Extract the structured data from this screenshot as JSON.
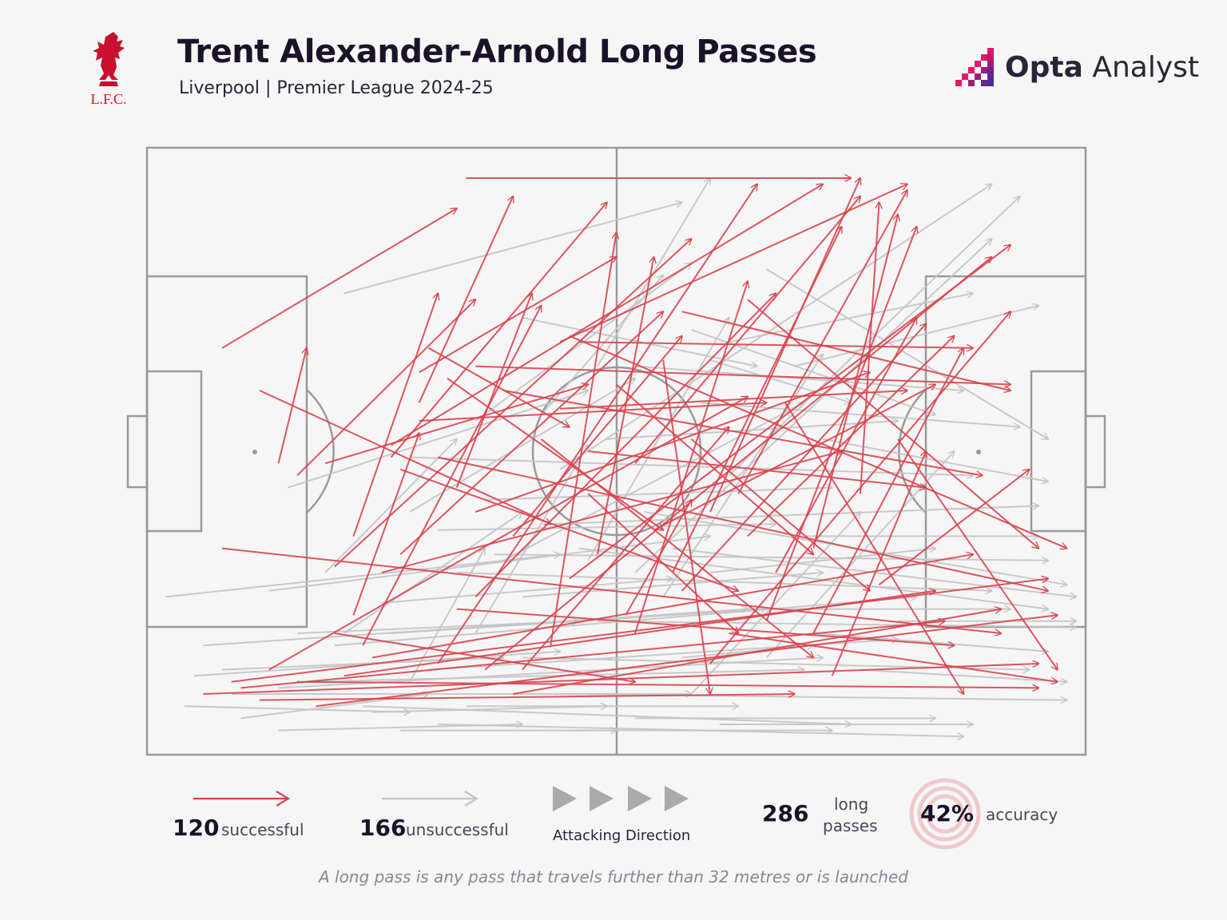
{
  "header": {
    "title": "Trent Alexander-Arnold Long Passes",
    "subtitle": "Liverpool | Premier League 2024-25",
    "club_crest_text": "L.F.C.",
    "brand_bold": "Opta",
    "brand_light": " Analyst"
  },
  "colors": {
    "successful": "#d9434f",
    "unsuccessful": "#c4c4c4",
    "pitch_lines": "#9a9a9a",
    "background": "#f6f6f6",
    "brand": "#b0185e"
  },
  "legend": {
    "successful_count": "120",
    "successful_label": "successful",
    "unsuccessful_count": "166",
    "unsuccessful_label": "unsuccessful",
    "direction_label": "Attacking Direction",
    "total_count": "286",
    "total_label_line1": "long",
    "total_label_line2": "passes",
    "accuracy_value": "42%",
    "accuracy_label": "accuracy"
  },
  "footnote": "A long pass is any pass that travels further than 32 metres or is launched",
  "chart_data": {
    "type": "pass-map",
    "pitch_units": "x 0-100 along length (attacking left to right), y 0-100 across width (0 = top touchline)",
    "attacking_direction": "left-to-right",
    "totals": {
      "successful": 120,
      "unsuccessful": 166,
      "total": 286,
      "accuracy_pct": 42
    },
    "successful": [
      [
        34,
        5,
        75,
        5
      ],
      [
        19,
        52,
        47,
        39
      ],
      [
        26,
        49,
        72,
        6
      ],
      [
        22,
        64,
        31,
        24
      ],
      [
        14,
        52,
        17,
        33
      ],
      [
        44,
        32,
        81,
        6
      ],
      [
        29,
        42,
        39,
        8
      ],
      [
        8,
        33,
        33,
        10
      ],
      [
        31,
        85,
        65,
        6
      ],
      [
        63,
        57,
        81,
        7
      ],
      [
        52,
        52,
        76,
        8
      ],
      [
        27,
        67,
        55,
        27
      ],
      [
        60,
        60,
        76,
        5
      ],
      [
        71,
        66,
        80,
        11
      ],
      [
        76,
        57,
        78,
        9
      ],
      [
        20,
        69,
        58,
        15
      ],
      [
        29,
        37,
        50,
        18
      ],
      [
        16,
        54,
        35,
        25
      ],
      [
        22,
        77,
        29,
        47
      ],
      [
        33,
        56,
        41,
        24
      ],
      [
        52,
        80,
        64,
        22
      ],
      [
        43,
        82,
        50,
        14
      ],
      [
        39,
        64,
        57,
        31
      ],
      [
        45,
        71,
        92,
        16
      ],
      [
        38,
        40,
        89,
        54
      ],
      [
        35,
        36,
        92,
        39
      ],
      [
        51,
        77,
        58,
        58
      ],
      [
        39,
        90,
        91,
        76
      ],
      [
        6,
        90,
        95,
        85
      ],
      [
        9,
        88,
        96,
        71
      ],
      [
        45,
        31,
        98,
        66
      ],
      [
        64,
        25,
        95,
        66
      ],
      [
        57,
        27,
        92,
        40
      ],
      [
        46,
        32,
        88,
        33
      ],
      [
        35,
        60,
        77,
        37
      ],
      [
        56,
        70,
        74,
        13
      ],
      [
        29,
        45,
        66,
        42
      ],
      [
        32,
        38,
        55,
        63
      ],
      [
        27,
        53,
        63,
        73
      ],
      [
        8,
        66,
        91,
        80
      ],
      [
        16,
        88,
        95,
        89
      ],
      [
        18,
        92,
        97,
        77
      ],
      [
        24,
        84,
        88,
        67
      ],
      [
        40,
        86,
        62,
        46
      ],
      [
        64,
        64,
        86,
        31
      ],
      [
        66,
        78,
        82,
        13
      ],
      [
        71,
        80,
        87,
        33
      ],
      [
        78,
        72,
        94,
        53
      ],
      [
        54,
        63,
        84,
        39
      ],
      [
        47,
        50,
        83,
        56
      ],
      [
        21,
        87,
        84,
        73
      ],
      [
        12,
        91,
        69,
        90
      ],
      [
        31,
        51,
        96,
        73
      ],
      [
        44,
        43,
        81,
        40
      ],
      [
        35,
        74,
        67,
        24
      ],
      [
        26,
        51,
        49,
        9
      ],
      [
        57,
        73,
        83,
        29
      ],
      [
        60,
        85,
        92,
        27
      ],
      [
        67,
        70,
        82,
        28
      ],
      [
        50,
        39,
        71,
        67
      ],
      [
        36,
        86,
        90,
        18
      ],
      [
        73,
        87,
        83,
        50
      ],
      [
        12,
        40,
        43,
        62
      ],
      [
        48,
        67,
        54,
        18
      ],
      [
        62,
        80,
        97,
        88
      ],
      [
        80,
        48,
        97,
        86
      ],
      [
        13,
        86,
        64,
        41
      ],
      [
        23,
        82,
        42,
        26
      ],
      [
        30,
        33,
        45,
        46
      ],
      [
        42,
        48,
        71,
        84
      ],
      [
        55,
        35,
        60,
        90
      ],
      [
        25,
        70,
        74,
        50
      ],
      [
        10,
        89,
        85,
        78
      ],
      [
        20,
        80,
        52,
        88
      ],
      [
        47,
        57,
        63,
        80
      ],
      [
        33,
        76,
        86,
        82
      ],
      [
        68,
        42,
        87,
        90
      ],
      [
        58,
        48,
        77,
        73
      ]
    ],
    "unsuccessful": [
      [
        21,
        24,
        57,
        9
      ],
      [
        48,
        36,
        60,
        5
      ],
      [
        44,
        53,
        90,
        6
      ],
      [
        52,
        70,
        90,
        15
      ],
      [
        15,
        56,
        47,
        40
      ],
      [
        40,
        28,
        65,
        36
      ],
      [
        35,
        45,
        58,
        19
      ],
      [
        58,
        30,
        84,
        44
      ],
      [
        62,
        54,
        93,
        8
      ],
      [
        60,
        35,
        75,
        42
      ],
      [
        66,
        20,
        96,
        48
      ],
      [
        28,
        51,
        88,
        54
      ],
      [
        43,
        62,
        95,
        59
      ],
      [
        53,
        60,
        98,
        72
      ],
      [
        2,
        74,
        44,
        67
      ],
      [
        13,
        73,
        60,
        64
      ],
      [
        6,
        82,
        64,
        76
      ],
      [
        14,
        89,
        72,
        84
      ],
      [
        9,
        90,
        58,
        90
      ],
      [
        23,
        92,
        75,
        95
      ],
      [
        31,
        95,
        87,
        97
      ],
      [
        40,
        84,
        94,
        86
      ],
      [
        48,
        78,
        99,
        79
      ],
      [
        37,
        67,
        96,
        68
      ],
      [
        20,
        82,
        82,
        74
      ],
      [
        17,
        88,
        70,
        86
      ],
      [
        26,
        80,
        66,
        76
      ],
      [
        33,
        70,
        90,
        73
      ],
      [
        46,
        66,
        96,
        76
      ],
      [
        56,
        66,
        99,
        74
      ],
      [
        59,
        42,
        93,
        46
      ],
      [
        72,
        48,
        96,
        55
      ],
      [
        69,
        36,
        95,
        26
      ],
      [
        62,
        32,
        88,
        24
      ],
      [
        52,
        36,
        87,
        40
      ],
      [
        38,
        68,
        70,
        42
      ],
      [
        28,
        60,
        52,
        38
      ],
      [
        19,
        70,
        33,
        48
      ],
      [
        42,
        44,
        55,
        21
      ],
      [
        47,
        68,
        62,
        28
      ],
      [
        55,
        74,
        72,
        34
      ],
      [
        35,
        80,
        47,
        49
      ],
      [
        24,
        93,
        49,
        92
      ],
      [
        10,
        94,
        30,
        90
      ],
      [
        8,
        86,
        38,
        84
      ],
      [
        30,
        86,
        80,
        81
      ],
      [
        44,
        90,
        98,
        91
      ],
      [
        5,
        87,
        44,
        83
      ],
      [
        64,
        76,
        92,
        76
      ],
      [
        70,
        64,
        95,
        64
      ],
      [
        49,
        48,
        80,
        45
      ],
      [
        36,
        58,
        73,
        56
      ],
      [
        21,
        80,
        40,
        60
      ],
      [
        28,
        88,
        36,
        66
      ],
      [
        58,
        90,
        76,
        60
      ],
      [
        66,
        84,
        86,
        50
      ],
      [
        71,
        80,
        96,
        83
      ],
      [
        76,
        86,
        98,
        88
      ],
      [
        80,
        78,
        99,
        78
      ],
      [
        60,
        70,
        84,
        66
      ],
      [
        40,
        74,
        72,
        70
      ],
      [
        31,
        63,
        67,
        62
      ],
      [
        25,
        75,
        56,
        71
      ],
      [
        16,
        80,
        46,
        78
      ],
      [
        4,
        92,
        28,
        93
      ],
      [
        14,
        96,
        40,
        95
      ],
      [
        52,
        94,
        84,
        94
      ],
      [
        61,
        95,
        88,
        95
      ],
      [
        34,
        92,
        63,
        92
      ],
      [
        45,
        96,
        73,
        96
      ],
      [
        27,
        96,
        50,
        96
      ],
      [
        57,
        84,
        71,
        82
      ]
    ]
  }
}
